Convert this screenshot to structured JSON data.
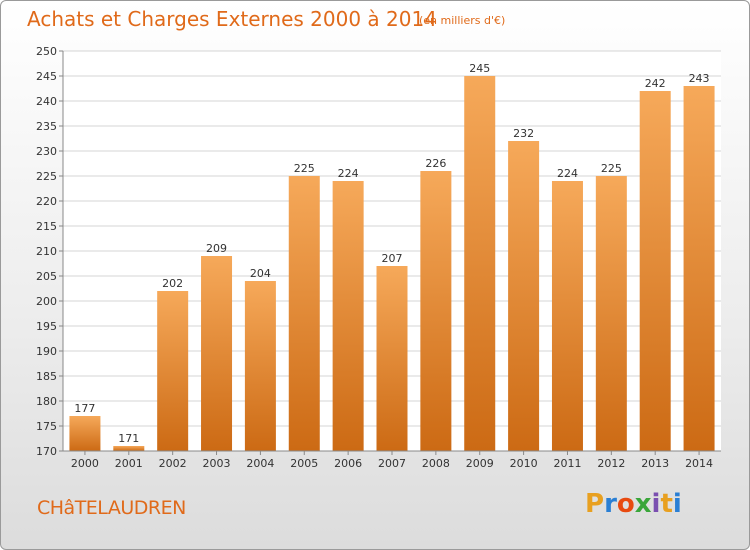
{
  "header": {
    "title": "Achats et Charges Externes 2000 à 2014",
    "subtitle": "(en milliers d'€)"
  },
  "footer": {
    "commune": "CHâTELAUDREN",
    "logo": {
      "letters": [
        "P",
        "r",
        "o",
        "x",
        "i",
        "t",
        "i"
      ],
      "colors": [
        "#e8a020",
        "#2a7fd4",
        "#e84a10",
        "#3aa63a",
        "#7a4fb0",
        "#e8a020",
        "#2a7fd4"
      ],
      "text": "Proxiti"
    }
  },
  "colors": {
    "bar_light": "#f6a95a",
    "bar_dark": "#cc6a14",
    "title": "#e06a1a"
  },
  "chart_data": {
    "type": "bar",
    "title": "Achats et Charges Externes 2000 à 2014",
    "subtitle": "(en milliers d'€)",
    "xlabel": "",
    "ylabel": "",
    "categories": [
      "2000",
      "2001",
      "2002",
      "2003",
      "2004",
      "2005",
      "2006",
      "2007",
      "2008",
      "2009",
      "2010",
      "2011",
      "2012",
      "2013",
      "2014"
    ],
    "values": [
      177,
      171,
      202,
      209,
      204,
      225,
      224,
      207,
      226,
      245,
      232,
      224,
      225,
      242,
      243
    ],
    "ylim": [
      170,
      250
    ],
    "yticks": [
      170,
      175,
      180,
      185,
      190,
      195,
      200,
      205,
      210,
      215,
      220,
      225,
      230,
      235,
      240,
      245,
      250
    ],
    "grid": true,
    "data_labels": true
  }
}
